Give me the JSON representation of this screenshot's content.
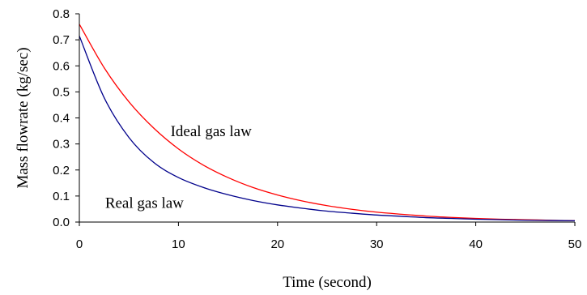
{
  "chart_data": {
    "type": "line",
    "title": "",
    "xlabel": "Time (second)",
    "ylabel": "Mass flowrate (kg/sec)",
    "xlim": [
      0,
      50
    ],
    "ylim": [
      0,
      0.8
    ],
    "x_ticks": [
      0,
      10,
      20,
      30,
      40,
      50
    ],
    "y_ticks": [
      0.0,
      0.1,
      0.2,
      0.3,
      0.4,
      0.5,
      0.6,
      0.7,
      0.8
    ],
    "x_tick_labels": [
      "0",
      "10",
      "20",
      "30",
      "40",
      "50"
    ],
    "y_tick_labels": [
      "0.0",
      "0.1",
      "0.2",
      "0.3",
      "0.4",
      "0.5",
      "0.6",
      "0.7",
      "0.8"
    ],
    "grid": false,
    "legend": "none",
    "series": [
      {
        "name": "Ideal gas law",
        "color": "#ff0000",
        "x": [
          0,
          2.5,
          5,
          7.5,
          10,
          12.5,
          15,
          17.5,
          20,
          22.5,
          25,
          27.5,
          30,
          32.5,
          35,
          37.5,
          40,
          42.5,
          45,
          47.5,
          50
        ],
        "y": [
          0.76,
          0.593,
          0.462,
          0.361,
          0.281,
          0.219,
          0.171,
          0.133,
          0.104,
          0.081,
          0.063,
          0.049,
          0.038,
          0.03,
          0.023,
          0.018,
          0.014,
          0.011,
          0.009,
          0.007,
          0.005
        ]
      },
      {
        "name": "Real gas law",
        "color": "#00008b",
        "x": [
          0,
          2.5,
          5,
          7.5,
          10,
          12.5,
          15,
          17.5,
          20,
          22.5,
          25,
          27.5,
          30,
          32.5,
          35,
          37.5,
          40,
          42.5,
          45,
          47.5,
          50
        ],
        "y": [
          0.715,
          0.478,
          0.325,
          0.229,
          0.171,
          0.133,
          0.105,
          0.083,
          0.066,
          0.053,
          0.042,
          0.034,
          0.027,
          0.022,
          0.017,
          0.014,
          0.011,
          0.009,
          0.007,
          0.006,
          0.005
        ]
      }
    ],
    "annotations": [
      {
        "text": "Ideal gas law",
        "series": "Ideal gas law"
      },
      {
        "text": "Real gas law",
        "series": "Real gas law"
      }
    ]
  }
}
